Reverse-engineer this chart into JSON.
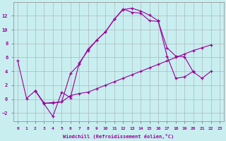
{
  "xlabel": "Windchill (Refroidissement éolien,°C)",
  "background_color": "#c8eef0",
  "line_color": "#990099",
  "grid_color": "#aaaaaa",
  "xlim": [
    -0.5,
    23.5
  ],
  "ylim": [
    -3.2,
    14.0
  ],
  "xticks": [
    0,
    1,
    2,
    3,
    4,
    5,
    6,
    7,
    8,
    9,
    10,
    11,
    12,
    13,
    14,
    15,
    16,
    17,
    18,
    19,
    20,
    21,
    22,
    23
  ],
  "yticks": [
    -2,
    0,
    2,
    4,
    6,
    8,
    10,
    12
  ],
  "line1_x": [
    0,
    1,
    2,
    3,
    4,
    5,
    6,
    7,
    8,
    9,
    10,
    11,
    12,
    13,
    14,
    15,
    16,
    17,
    18,
    19,
    20
  ],
  "line1_y": [
    5.5,
    0.1,
    1.2,
    -0.7,
    -2.5,
    1.0,
    0.2,
    5.2,
    7.0,
    8.5,
    9.7,
    11.5,
    12.9,
    13.1,
    12.7,
    12.1,
    11.3,
    6.2,
    3.0,
    3.2,
    4.0
  ],
  "line2_x": [
    2,
    3,
    4,
    5,
    6,
    7,
    8,
    9,
    10,
    11,
    12,
    13,
    14,
    15,
    16,
    17,
    18,
    19,
    20,
    21,
    22
  ],
  "line2_y": [
    1.2,
    -0.6,
    -0.6,
    -0.4,
    3.7,
    5.0,
    7.2,
    8.5,
    9.7,
    11.5,
    13.0,
    12.5,
    12.4,
    11.3,
    11.2,
    7.4,
    6.2,
    6.1,
    3.9,
    3.0,
    4.0
  ],
  "line3_x": [
    2,
    3,
    4,
    5,
    6,
    7,
    8,
    9,
    10,
    11,
    12,
    13,
    14,
    15,
    16,
    17,
    18,
    19,
    20,
    21,
    22
  ],
  "line3_y": [
    1.2,
    -0.6,
    -0.5,
    -0.4,
    0.5,
    0.8,
    1.0,
    1.5,
    2.0,
    2.5,
    3.0,
    3.5,
    4.0,
    4.5,
    5.0,
    5.5,
    6.0,
    6.5,
    7.0,
    7.4,
    7.8
  ]
}
